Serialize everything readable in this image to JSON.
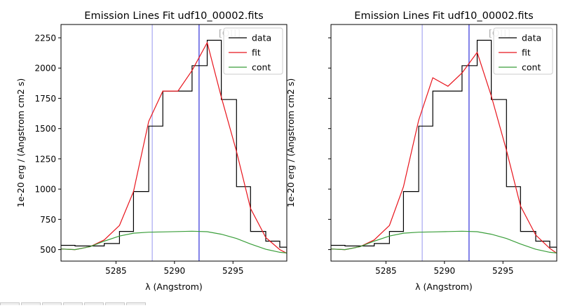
{
  "figure": {
    "toolbar_buttons": [
      "home",
      "back",
      "forward",
      "pan",
      "zoom",
      "configure",
      "save"
    ]
  },
  "chart_data": [
    {
      "type": "line",
      "title": "Emission Lines Fit udf10_00002.fits",
      "xlabel": "λ (Angstrom)",
      "ylabel": "1e-20 erg / (Angstrom cm2 s)",
      "xlim": [
        5280.3,
        5299.6
      ],
      "ylim": [
        405,
        2360
      ],
      "x_ticks": [
        5285,
        5290,
        5295
      ],
      "x_tick_labels": [
        "5285",
        "5290",
        "5295"
      ],
      "y_ticks": [
        500,
        750,
        1000,
        1250,
        1500,
        1750,
        2000,
        2250
      ],
      "y_tick_labels": [
        "500",
        "750",
        "1000",
        "1250",
        "1500",
        "1750",
        "2000",
        "2250"
      ],
      "show_y_tick_labels": true,
      "grid": false,
      "legend_position": "top-right",
      "vlines": [
        {
          "x": 5288.1,
          "color": "#b8b8f4"
        },
        {
          "x": 5292.1,
          "color": "#5a5ae0"
        }
      ],
      "line_label": {
        "text": "[OII]",
        "x": 5292.1
      },
      "series": [
        {
          "name": "data",
          "style": "steps",
          "color": "#000000",
          "x": [
            5280.3,
            5281.5,
            5282.8,
            5284.0,
            5285.3,
            5286.5,
            5287.8,
            5289.0,
            5290.3,
            5291.5,
            5292.8,
            5294.0,
            5295.3,
            5296.5,
            5297.8,
            5299.0,
            5299.6
          ],
          "y": [
            535,
            530,
            530,
            550,
            650,
            980,
            1520,
            1810,
            1810,
            2020,
            2230,
            1740,
            1020,
            650,
            570,
            520,
            480
          ]
        },
        {
          "name": "fit",
          "style": "line",
          "color": "#e8141c",
          "x": [
            5280.3,
            5281.5,
            5282.8,
            5284.0,
            5285.3,
            5286.5,
            5287.8,
            5289.0,
            5290.3,
            5291.5,
            5292.8,
            5294.0,
            5295.3,
            5296.5,
            5297.8,
            5299.0,
            5299.6
          ],
          "y": [
            505,
            500,
            525,
            580,
            700,
            980,
            1560,
            1810,
            1810,
            1980,
            2210,
            1760,
            1310,
            840,
            600,
            500,
            470
          ]
        },
        {
          "name": "cont",
          "style": "line",
          "color": "#3a9e3a",
          "x": [
            5280.3,
            5281.5,
            5282.8,
            5284.0,
            5285.3,
            5286.5,
            5287.8,
            5289.0,
            5290.3,
            5291.5,
            5292.8,
            5294.0,
            5295.3,
            5296.5,
            5297.8,
            5299.0,
            5299.6
          ],
          "y": [
            505,
            500,
            525,
            570,
            612,
            636,
            644,
            646,
            649,
            652,
            648,
            627,
            592,
            546,
            503,
            478,
            472
          ]
        }
      ]
    },
    {
      "type": "line",
      "title": "Emission Lines Fit udf10_00002.fits",
      "xlabel": "λ (Angstrom)",
      "ylabel": "1e-20 erg / (Angstrom cm2 s)",
      "xlim": [
        5280.3,
        5299.6
      ],
      "ylim": [
        405,
        2360
      ],
      "x_ticks": [
        5285,
        5290,
        5295
      ],
      "x_tick_labels": [
        "5285",
        "5290",
        "5295"
      ],
      "y_ticks": [
        500,
        750,
        1000,
        1250,
        1500,
        1750,
        2000,
        2250
      ],
      "show_y_tick_labels": false,
      "grid": false,
      "legend_position": "top-right",
      "vlines": [
        {
          "x": 5288.1,
          "color": "#b8b8f4"
        },
        {
          "x": 5292.1,
          "color": "#5a5ae0"
        }
      ],
      "line_label": {
        "text": "[OII]",
        "x": 5292.1
      },
      "series": [
        {
          "name": "data",
          "style": "steps",
          "color": "#000000",
          "x": [
            5280.3,
            5281.5,
            5282.8,
            5284.0,
            5285.3,
            5286.5,
            5287.8,
            5289.0,
            5290.3,
            5291.5,
            5292.8,
            5294.0,
            5295.3,
            5296.5,
            5297.8,
            5299.0,
            5299.6
          ],
          "y": [
            535,
            530,
            530,
            550,
            650,
            980,
            1520,
            1810,
            1810,
            2020,
            2230,
            1740,
            1020,
            650,
            570,
            520,
            480
          ]
        },
        {
          "name": "fit",
          "style": "line",
          "color": "#e8141c",
          "x": [
            5280.3,
            5281.5,
            5282.8,
            5284.0,
            5285.3,
            5286.5,
            5287.8,
            5289.0,
            5290.3,
            5291.5,
            5292.8,
            5294.0,
            5295.3,
            5296.5,
            5297.8,
            5299.0,
            5299.6
          ],
          "y": [
            505,
            500,
            525,
            580,
            700,
            1020,
            1570,
            1920,
            1850,
            1960,
            2130,
            1770,
            1320,
            860,
            620,
            510,
            470
          ]
        },
        {
          "name": "cont",
          "style": "line",
          "color": "#3a9e3a",
          "x": [
            5280.3,
            5281.5,
            5282.8,
            5284.0,
            5285.3,
            5286.5,
            5287.8,
            5289.0,
            5290.3,
            5291.5,
            5292.8,
            5294.0,
            5295.3,
            5296.5,
            5297.8,
            5299.0,
            5299.6
          ],
          "y": [
            505,
            500,
            525,
            570,
            612,
            636,
            644,
            646,
            649,
            652,
            648,
            627,
            592,
            546,
            503,
            478,
            472
          ]
        }
      ]
    }
  ]
}
